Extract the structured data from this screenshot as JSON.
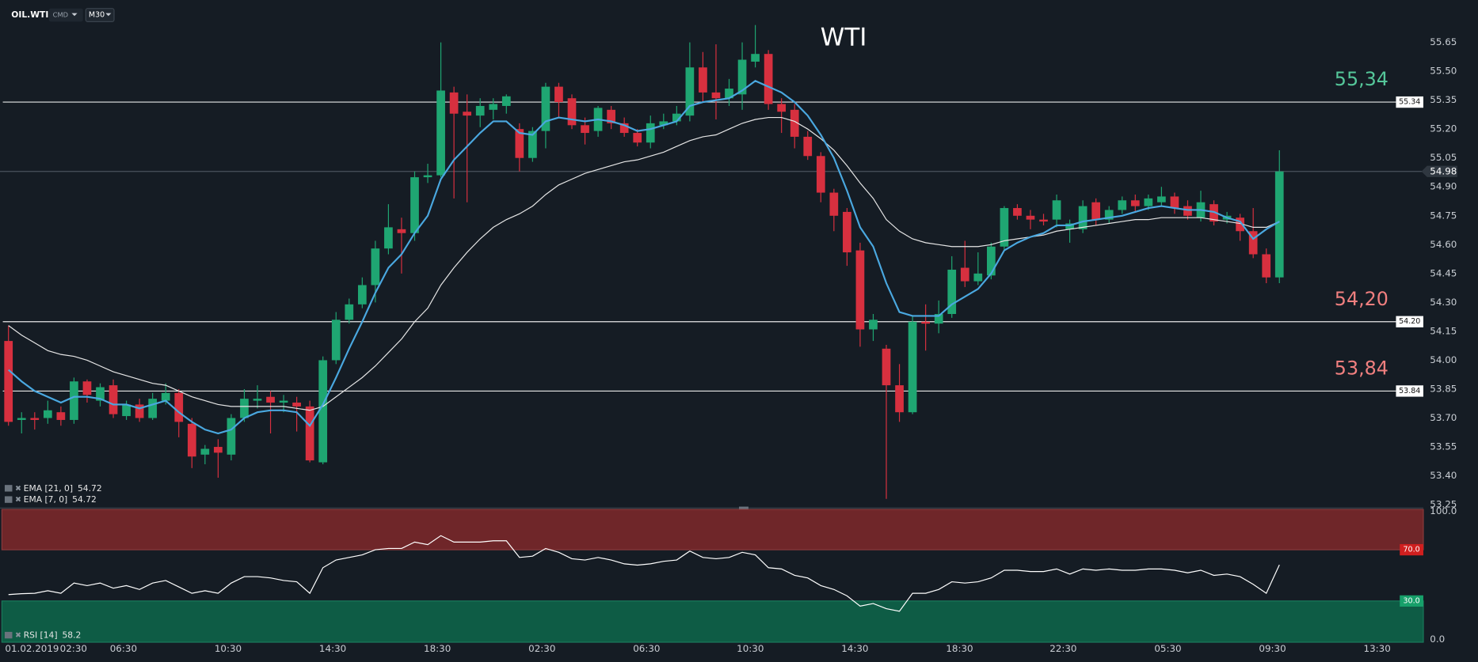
{
  "header": {
    "symbol": "OIL.WTI",
    "market": "CMD",
    "timeframe": "M30"
  },
  "chart_data": [
    {
      "type": "candlestick",
      "title": "WTI",
      "up_color": "#1fa672",
      "down_color": "#d7303f",
      "ylim": [
        53.24,
        55.87
      ],
      "yticks": [
        55.65,
        {
          "value": 55.5,
          "label": "55.50"
        },
        55.35,
        {
          "value": 55.2,
          "label": "55.20"
        },
        55.05,
        {
          "value": 54.9,
          "label": "54.90"
        },
        54.75,
        {
          "value": 54.6,
          "label": "54.60"
        },
        54.45,
        {
          "value": 54.3,
          "label": "54.30"
        },
        54.15,
        {
          "value": 54,
          "label": "54.00"
        },
        53.85,
        {
          "value": 53.7,
          "label": "53.70"
        },
        53.55,
        {
          "value": 53.4,
          "label": "53.40"
        },
        53.25
      ],
      "time_labels": [
        "01.02.2019",
        "02:30",
        "06:30",
        "10:30",
        "14:30",
        "18:30",
        "02:30",
        "06:30",
        "10:30",
        "14:30",
        "18:30",
        "22:30",
        "05:30",
        "09:30",
        "13:30"
      ],
      "candles": [
        [
          54.1,
          54.18,
          53.66,
          53.68
        ],
        [
          53.69,
          53.73,
          53.62,
          53.7
        ],
        [
          53.7,
          53.73,
          53.64,
          53.69
        ],
        [
          53.7,
          53.79,
          53.67,
          53.74
        ],
        [
          53.73,
          53.76,
          53.66,
          53.69
        ],
        [
          53.69,
          53.91,
          53.67,
          53.89
        ],
        [
          53.89,
          53.9,
          53.78,
          53.82
        ],
        [
          53.79,
          53.88,
          53.76,
          53.86
        ],
        [
          53.87,
          53.9,
          53.7,
          53.72
        ],
        [
          53.71,
          53.79,
          53.69,
          53.77
        ],
        [
          53.77,
          53.8,
          53.68,
          53.7
        ],
        [
          53.7,
          53.83,
          53.69,
          53.8
        ],
        [
          53.79,
          53.88,
          53.77,
          53.83
        ],
        [
          53.83,
          53.85,
          53.6,
          53.68
        ],
        [
          53.67,
          53.7,
          53.44,
          53.5
        ],
        [
          53.51,
          53.56,
          53.46,
          53.54
        ],
        [
          53.55,
          53.59,
          53.39,
          53.52
        ],
        [
          53.51,
          53.72,
          53.48,
          53.7
        ],
        [
          53.7,
          53.85,
          53.68,
          53.8
        ],
        [
          53.79,
          53.87,
          53.75,
          53.8
        ],
        [
          53.81,
          53.84,
          53.62,
          53.78
        ],
        [
          53.78,
          53.82,
          53.73,
          53.79
        ],
        [
          53.78,
          53.81,
          53.63,
          53.76
        ],
        [
          53.76,
          53.79,
          53.47,
          53.48
        ],
        [
          53.47,
          54.02,
          53.46,
          54.0
        ],
        [
          54.0,
          54.25,
          53.98,
          54.21
        ],
        [
          54.21,
          54.32,
          54.19,
          54.29
        ],
        [
          54.29,
          54.43,
          54.27,
          54.39
        ],
        [
          54.39,
          54.62,
          54.3,
          54.58
        ],
        [
          54.58,
          54.81,
          54.55,
          54.69
        ],
        [
          54.68,
          54.74,
          54.45,
          54.66
        ],
        [
          54.66,
          54.98,
          54.62,
          54.95
        ],
        [
          54.95,
          55.02,
          54.92,
          54.96
        ],
        [
          54.96,
          55.65,
          54.95,
          55.4
        ],
        [
          55.39,
          55.42,
          54.84,
          55.28
        ],
        [
          55.29,
          55.38,
          54.82,
          55.27
        ],
        [
          55.27,
          55.36,
          55.21,
          55.32
        ],
        [
          55.3,
          55.36,
          55.25,
          55.33
        ],
        [
          55.32,
          55.38,
          55.28,
          55.37
        ],
        [
          55.2,
          55.23,
          54.98,
          55.05
        ],
        [
          55.05,
          55.21,
          55.03,
          55.19
        ],
        [
          55.19,
          55.44,
          55.1,
          55.42
        ],
        [
          55.42,
          55.44,
          55.26,
          55.34
        ],
        [
          55.36,
          55.38,
          55.2,
          55.22
        ],
        [
          55.22,
          55.26,
          55.12,
          55.18
        ],
        [
          55.19,
          55.32,
          55.16,
          55.31
        ],
        [
          55.3,
          55.32,
          55.2,
          55.23
        ],
        [
          55.23,
          55.26,
          55.16,
          55.18
        ],
        [
          55.18,
          55.2,
          55.11,
          55.13
        ],
        [
          55.13,
          55.27,
          55.1,
          55.23
        ],
        [
          55.22,
          55.28,
          55.2,
          55.24
        ],
        [
          55.24,
          55.32,
          55.22,
          55.28
        ],
        [
          55.27,
          55.65,
          55.24,
          55.52
        ],
        [
          55.52,
          55.6,
          55.34,
          55.39
        ],
        [
          55.39,
          55.64,
          55.25,
          55.36
        ],
        [
          55.36,
          55.46,
          55.32,
          55.41
        ],
        [
          55.38,
          55.65,
          55.3,
          55.56
        ],
        [
          55.55,
          55.74,
          55.52,
          55.59
        ],
        [
          55.59,
          55.61,
          55.3,
          55.33
        ],
        [
          55.33,
          55.36,
          55.18,
          55.29
        ],
        [
          55.3,
          55.33,
          55.1,
          55.16
        ],
        [
          55.16,
          55.19,
          55.04,
          55.06
        ],
        [
          55.06,
          55.08,
          54.82,
          54.87
        ],
        [
          54.87,
          54.89,
          54.67,
          54.75
        ],
        [
          54.77,
          54.79,
          54.49,
          54.56
        ],
        [
          54.57,
          54.61,
          54.07,
          54.16
        ],
        [
          54.16,
          54.24,
          54.1,
          54.21
        ],
        [
          54.06,
          54.08,
          53.28,
          53.87
        ],
        [
          53.87,
          53.98,
          53.68,
          53.73
        ],
        [
          53.73,
          54.23,
          53.72,
          54.2
        ],
        [
          54.2,
          54.29,
          54.05,
          54.19
        ],
        [
          54.19,
          54.31,
          54.14,
          54.24
        ],
        [
          54.24,
          54.54,
          54.22,
          54.47
        ],
        [
          54.48,
          54.62,
          54.38,
          54.41
        ],
        [
          54.41,
          54.56,
          54.39,
          54.45
        ],
        [
          54.44,
          54.61,
          54.42,
          54.59
        ],
        [
          54.59,
          54.8,
          54.57,
          54.79
        ],
        [
          54.79,
          54.81,
          54.73,
          54.75
        ],
        [
          54.75,
          54.78,
          54.68,
          54.73
        ],
        [
          54.73,
          54.76,
          54.7,
          54.72
        ],
        [
          54.73,
          54.86,
          54.69,
          54.83
        ],
        [
          54.68,
          54.73,
          54.61,
          54.71
        ],
        [
          54.68,
          54.83,
          54.66,
          54.8
        ],
        [
          54.82,
          54.84,
          54.7,
          54.73
        ],
        [
          54.73,
          54.8,
          54.71,
          54.78
        ],
        [
          54.78,
          54.85,
          54.76,
          54.83
        ],
        [
          54.83,
          54.86,
          54.77,
          54.8
        ],
        [
          54.8,
          54.86,
          54.78,
          54.84
        ],
        [
          54.82,
          54.9,
          54.8,
          54.85
        ],
        [
          54.85,
          54.87,
          54.76,
          54.79
        ],
        [
          54.8,
          54.83,
          54.73,
          54.75
        ],
        [
          54.74,
          54.88,
          54.72,
          54.82
        ],
        [
          54.81,
          54.83,
          54.7,
          54.72
        ],
        [
          54.73,
          54.77,
          54.71,
          54.75
        ],
        [
          54.74,
          54.76,
          54.62,
          54.67
        ],
        [
          54.67,
          54.79,
          54.53,
          54.55
        ],
        [
          54.55,
          54.58,
          54.4,
          54.43
        ],
        [
          54.43,
          55.09,
          54.4,
          54.98
        ]
      ],
      "series": [
        {
          "name": "EMA [21, 0]",
          "color": "#e6e6e6",
          "last": 54.72,
          "values": [
            54.18,
            54.13,
            54.09,
            54.05,
            54.03,
            54.02,
            54.0,
            53.97,
            53.94,
            53.92,
            53.9,
            53.88,
            53.87,
            53.84,
            53.81,
            53.79,
            53.77,
            53.76,
            53.76,
            53.76,
            53.76,
            53.76,
            53.75,
            53.74,
            53.76,
            53.81,
            53.86,
            53.91,
            53.97,
            54.04,
            54.11,
            54.2,
            54.27,
            54.39,
            54.48,
            54.56,
            54.63,
            54.69,
            54.73,
            54.76,
            54.8,
            54.86,
            54.91,
            54.94,
            54.97,
            54.99,
            55.01,
            55.03,
            55.04,
            55.06,
            55.08,
            55.11,
            55.14,
            55.16,
            55.17,
            55.2,
            55.23,
            55.25,
            55.26,
            55.26,
            55.24,
            55.2,
            55.15,
            55.09,
            55.01,
            54.92,
            54.84,
            54.73,
            54.67,
            54.63,
            54.61,
            54.6,
            54.59,
            54.59,
            54.59,
            54.6,
            54.62,
            54.63,
            54.64,
            54.65,
            54.67,
            54.68,
            54.69,
            54.7,
            54.71,
            54.72,
            54.73,
            54.73,
            54.74,
            54.74,
            54.74,
            54.74,
            54.73,
            54.72,
            54.71,
            54.69,
            54.69,
            54.72
          ]
        },
        {
          "name": "EMA [7, 0]",
          "color": "#4aa8e0",
          "last": 54.72,
          "values": [
            53.95,
            53.89,
            53.84,
            53.81,
            53.78,
            53.81,
            53.81,
            53.8,
            53.77,
            53.77,
            53.75,
            53.77,
            53.79,
            53.73,
            53.68,
            53.64,
            53.62,
            53.64,
            53.7,
            53.73,
            53.74,
            53.74,
            53.73,
            53.66,
            53.77,
            53.91,
            54.06,
            54.2,
            54.35,
            54.48,
            54.55,
            54.66,
            54.75,
            54.94,
            55.04,
            55.11,
            55.18,
            55.24,
            55.24,
            55.18,
            55.17,
            55.24,
            55.26,
            55.25,
            55.24,
            55.25,
            55.24,
            55.22,
            55.19,
            55.2,
            55.22,
            55.24,
            55.32,
            55.34,
            55.35,
            55.36,
            55.4,
            55.45,
            55.42,
            55.39,
            55.34,
            55.27,
            55.17,
            55.05,
            54.88,
            54.69,
            54.59,
            54.4,
            54.25,
            54.23,
            54.23,
            54.23,
            54.29,
            54.33,
            54.37,
            54.45,
            54.57,
            54.61,
            54.64,
            54.66,
            54.7,
            54.7,
            54.72,
            54.73,
            54.74,
            54.75,
            54.77,
            54.79,
            54.8,
            54.79,
            54.78,
            54.78,
            54.77,
            54.74,
            54.72,
            54.63,
            54.68,
            54.72
          ]
        }
      ],
      "levels": [
        {
          "value": 55.34,
          "label": "55,34",
          "tag": "55.34",
          "color": "#55c79a"
        },
        {
          "value": 54.2,
          "label": "54,20",
          "tag": "54.20",
          "color": "#f07f7f"
        },
        {
          "value": 53.84,
          "label": "53,84",
          "tag": "53.84",
          "color": "#f07f7f"
        }
      ],
      "last_price": 54.98
    },
    {
      "type": "line",
      "name": "RSI [14]",
      "color": "#ffffff",
      "last": 58.2,
      "ylim": [
        0,
        100
      ],
      "yticks": [
        {
          "value": 100,
          "label": "100.0"
        },
        {
          "value": 70,
          "label": "70.0"
        },
        {
          "value": 30,
          "label": "30.0"
        },
        {
          "value": 0,
          "label": "0.0"
        }
      ],
      "overbought": 70,
      "oversold": 30,
      "overbought_color": "#6f2629",
      "oversold_color": "#0e5c45",
      "values": [
        35,
        35.7,
        36,
        38,
        36,
        44,
        42,
        44,
        40,
        42,
        39,
        44,
        46,
        41,
        36,
        38,
        36,
        44,
        49,
        49,
        48,
        46,
        45,
        36,
        56,
        62,
        64,
        66,
        70,
        71,
        71,
        76,
        74,
        81,
        76,
        76,
        76,
        77,
        77,
        64,
        65,
        71,
        68,
        63,
        62,
        64,
        62,
        59,
        58,
        59,
        61,
        62,
        69,
        64,
        63,
        64,
        68,
        66,
        56,
        55,
        50,
        48,
        42,
        39,
        34,
        26,
        28,
        24,
        22,
        36,
        36,
        39,
        45,
        44,
        45,
        48,
        54,
        54,
        53,
        53,
        55,
        51,
        55,
        54,
        55,
        54,
        54,
        55,
        55,
        54,
        52,
        54,
        50,
        51,
        49,
        43,
        36,
        58.2
      ]
    }
  ]
}
